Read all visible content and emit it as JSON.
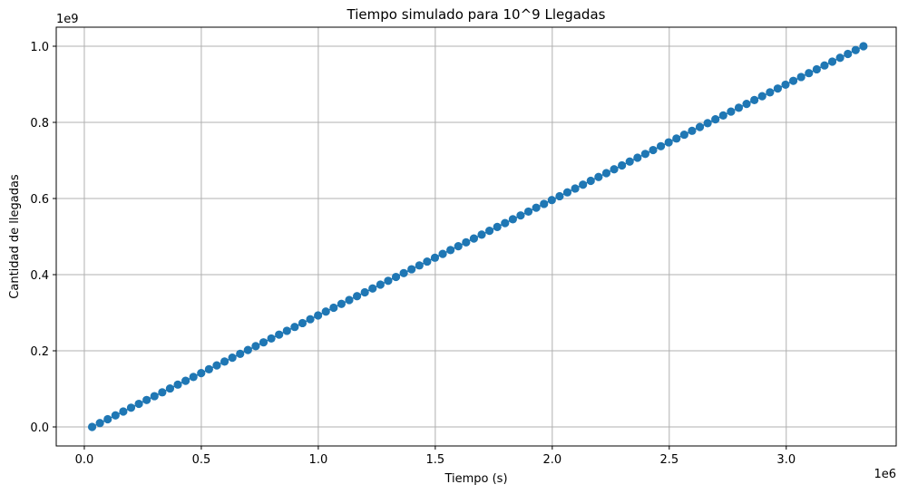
{
  "chart_data": {
    "type": "scatter",
    "title": "Tiempo simulado para 10^9 Llegadas",
    "xlabel": "Tiempo (s)",
    "ylabel": "Cantidad de llegadas",
    "x_multiplier": "1e6",
    "y_multiplier": "1e9",
    "xlim": [
      -0.12,
      3.47
    ],
    "ylim": [
      -0.05,
      1.05
    ],
    "x_ticks": [
      0.0,
      0.5,
      1.0,
      1.5,
      2.0,
      2.5,
      3.0
    ],
    "x_tick_labels": [
      "0.0",
      "0.5",
      "1.0",
      "1.5",
      "2.0",
      "2.5",
      "3.0"
    ],
    "y_ticks": [
      0.0,
      0.2,
      0.4,
      0.6,
      0.8,
      1.0
    ],
    "y_tick_labels": [
      "0.0",
      "0.2",
      "0.4",
      "0.6",
      "0.8",
      "1.0"
    ],
    "grid": true,
    "marker": "circle",
    "line": true,
    "color": "#1f77b4",
    "series": [
      {
        "x_start": 0.0333,
        "x_step": 0.0333,
        "y_start": 0.0,
        "y_step": 0.010101,
        "count": 100
      }
    ]
  }
}
